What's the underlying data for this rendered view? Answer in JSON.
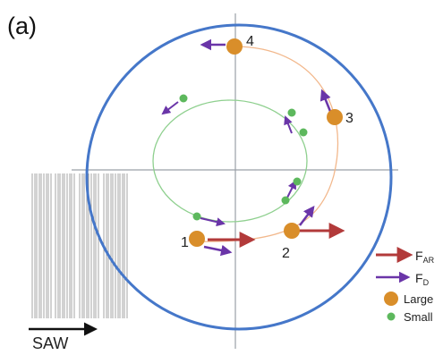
{
  "panel_label": "(a)",
  "positions": {
    "large": [
      "1",
      "2",
      "3",
      "4"
    ],
    "small_count": 6
  },
  "legend": {
    "far": {
      "main": "F",
      "sub": "AR"
    },
    "fd": {
      "main": "F",
      "sub": "D"
    },
    "large": "Large",
    "small": "Small"
  },
  "saw_label": "SAW",
  "colors": {
    "outer_circle": "#4577c9",
    "axes": "#9aa0a6",
    "large_path": "#f2b88c",
    "small_path": "#8fd08f",
    "large_particle": "#d98e2a",
    "small_particle": "#5db85d",
    "far_arrow": "#b23a3a",
    "fd_arrow": "#6a35a8",
    "saw_lines": "#9b9b9b",
    "saw_arrow": "#111111"
  }
}
